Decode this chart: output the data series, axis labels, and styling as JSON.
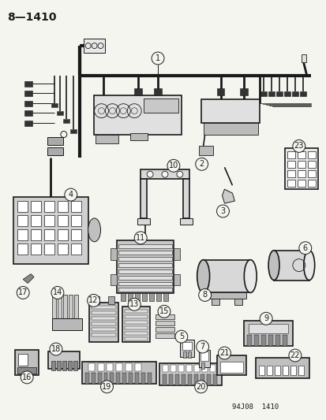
{
  "title": "8—1410",
  "bg_color": "#f5f5f0",
  "line_color": "#1a1a1a",
  "footer_text": "94J08  1410",
  "fig_width": 4.14,
  "fig_height": 5.33,
  "dpi": 100
}
